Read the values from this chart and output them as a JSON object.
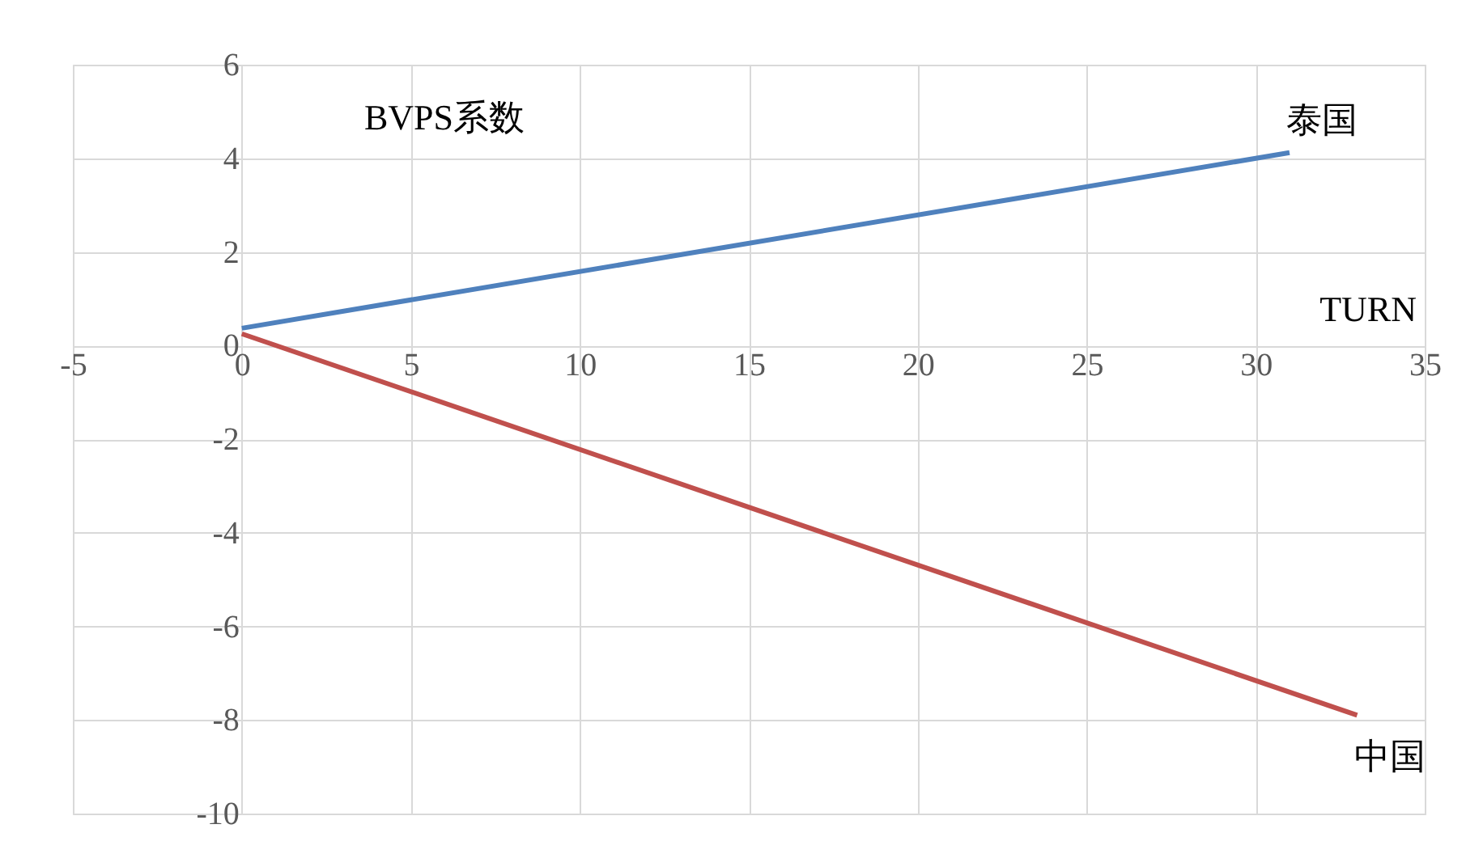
{
  "chart_data": {
    "type": "line",
    "xlabel": "TURN",
    "ylabel": "BVPS系数",
    "series": [
      {
        "name": "泰国",
        "color": "#4f81bd",
        "x": [
          0,
          31
        ],
        "values": [
          0.37,
          4.12
        ]
      },
      {
        "name": "中国",
        "color": "#c0504d",
        "x": [
          0,
          33
        ],
        "values": [
          0.25,
          -7.9
        ]
      }
    ],
    "xlim": [
      -5,
      35
    ],
    "xticks": [
      -5,
      0,
      5,
      10,
      15,
      20,
      25,
      30,
      35
    ],
    "ylim": [
      -10,
      6
    ],
    "yticks": [
      -10,
      -8,
      -6,
      -4,
      -2,
      0,
      2,
      4,
      6
    ],
    "grid": true,
    "marker": "none",
    "line_style": "solid"
  }
}
